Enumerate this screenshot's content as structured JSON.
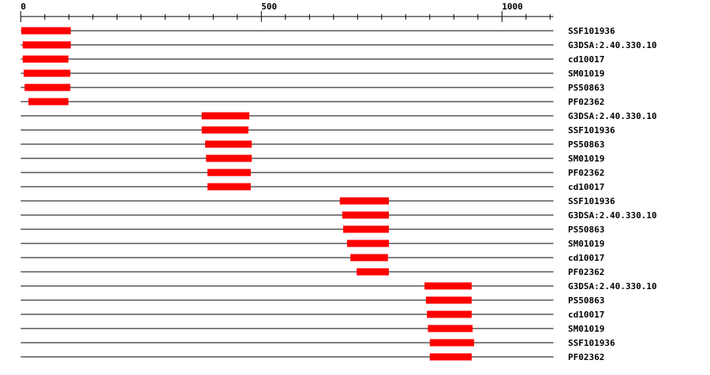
{
  "chart_data": {
    "type": "domain-map",
    "axis": {
      "min": 0,
      "max": 1107,
      "major_ticks": [
        0,
        500,
        1000
      ],
      "minor_tick_step": 50
    },
    "bar_color": "#ff0000",
    "tracks": [
      {
        "name": "SSF101936",
        "start": 1,
        "end": 104
      },
      {
        "name": "G3DSA:2.40.330.10",
        "start": 4,
        "end": 104
      },
      {
        "name": "cd10017",
        "start": 4,
        "end": 99
      },
      {
        "name": "SM01019",
        "start": 6,
        "end": 103
      },
      {
        "name": "PS50863",
        "start": 8,
        "end": 103
      },
      {
        "name": "PF02362",
        "start": 16,
        "end": 99
      },
      {
        "name": "G3DSA:2.40.330.10",
        "start": 376,
        "end": 475
      },
      {
        "name": "SSF101936",
        "start": 376,
        "end": 473
      },
      {
        "name": "PS50863",
        "start": 383,
        "end": 480
      },
      {
        "name": "SM01019",
        "start": 385,
        "end": 480
      },
      {
        "name": "PF02362",
        "start": 388,
        "end": 478
      },
      {
        "name": "cd10017",
        "start": 388,
        "end": 478
      },
      {
        "name": "SSF101936",
        "start": 663,
        "end": 765
      },
      {
        "name": "G3DSA:2.40.330.10",
        "start": 668,
        "end": 765
      },
      {
        "name": "PS50863",
        "start": 670,
        "end": 765
      },
      {
        "name": "SM01019",
        "start": 678,
        "end": 765
      },
      {
        "name": "cd10017",
        "start": 685,
        "end": 763
      },
      {
        "name": "PF02362",
        "start": 698,
        "end": 765
      },
      {
        "name": "G3DSA:2.40.330.10",
        "start": 839,
        "end": 937
      },
      {
        "name": "PS50863",
        "start": 842,
        "end": 937
      },
      {
        "name": "cd10017",
        "start": 844,
        "end": 937
      },
      {
        "name": "SM01019",
        "start": 846,
        "end": 939
      },
      {
        "name": "SSF101936",
        "start": 850,
        "end": 942
      },
      {
        "name": "PF02362",
        "start": 850,
        "end": 937
      }
    ]
  }
}
